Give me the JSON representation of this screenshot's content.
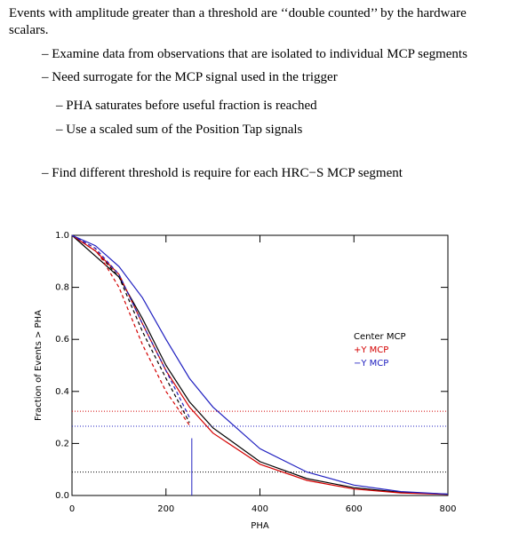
{
  "text": {
    "intro": "Events with amplitude greater than a threshold are ‘‘double counted’’ by the hardware scalars.",
    "bullets": [
      {
        "text": "– Examine data from observations that are isolated to individual MCP segments",
        "level": 1
      },
      {
        "text": "– Need surrogate for the MCP signal used in the trigger",
        "level": 1
      },
      {
        "text": "– PHA saturates before useful fraction is reached",
        "level": 2
      },
      {
        "text": "– Use a scaled sum of the Position Tap signals",
        "level": 2
      },
      {
        "text": "– Find different threshold is require for each HRC−S MCP segment",
        "level": 1
      }
    ]
  },
  "chart_data": {
    "type": "line",
    "xlabel": "PHA",
    "ylabel": "Fraction of Events > PHA",
    "xlim": [
      0,
      800
    ],
    "ylim": [
      0,
      1
    ],
    "xticks": [
      0,
      200,
      400,
      600,
      800
    ],
    "yticks": [
      {
        "value": 0,
        "label": "0.0"
      },
      {
        "value": 0.2,
        "label": "0.2"
      },
      {
        "value": 0.4,
        "label": "0.4"
      },
      {
        "value": 0.6,
        "label": "0.6"
      },
      {
        "value": 0.8,
        "label": "0.8"
      },
      {
        "value": 1,
        "label": "1.0"
      }
    ],
    "x": [
      0,
      50,
      100,
      150,
      200,
      250,
      300,
      400,
      500,
      600,
      700,
      800
    ],
    "cutoff_x": 255,
    "cutoff_top": 0.22,
    "series": [
      {
        "name": "Center MCP",
        "color": "#000000",
        "threshold": 0.09,
        "values": [
          1.0,
          0.92,
          0.84,
          0.68,
          0.5,
          0.36,
          0.26,
          0.13,
          0.065,
          0.03,
          0.012,
          0.005
        ],
        "dashed_values": [
          1.0,
          0.94,
          0.84,
          0.63,
          0.45,
          0.28,
          null,
          null,
          null,
          null,
          null,
          null
        ]
      },
      {
        "name": "+Y MCP",
        "color": "#d40000",
        "threshold": 0.324,
        "values": [
          1.0,
          0.94,
          0.85,
          0.66,
          0.48,
          0.34,
          0.24,
          0.12,
          0.058,
          0.025,
          0.01,
          0.004
        ],
        "dashed_values": [
          1.0,
          0.95,
          0.8,
          0.58,
          0.4,
          0.27,
          null,
          null,
          null,
          null,
          null,
          null
        ]
      },
      {
        "name": "−Y MCP",
        "color": "#2020c0",
        "threshold": 0.266,
        "values": [
          1.0,
          0.96,
          0.88,
          0.76,
          0.6,
          0.45,
          0.34,
          0.18,
          0.09,
          0.04,
          0.015,
          0.005
        ],
        "dashed_values": [
          1.0,
          0.95,
          0.85,
          0.66,
          0.48,
          0.3,
          null,
          null,
          null,
          null,
          null,
          null
        ]
      }
    ]
  }
}
